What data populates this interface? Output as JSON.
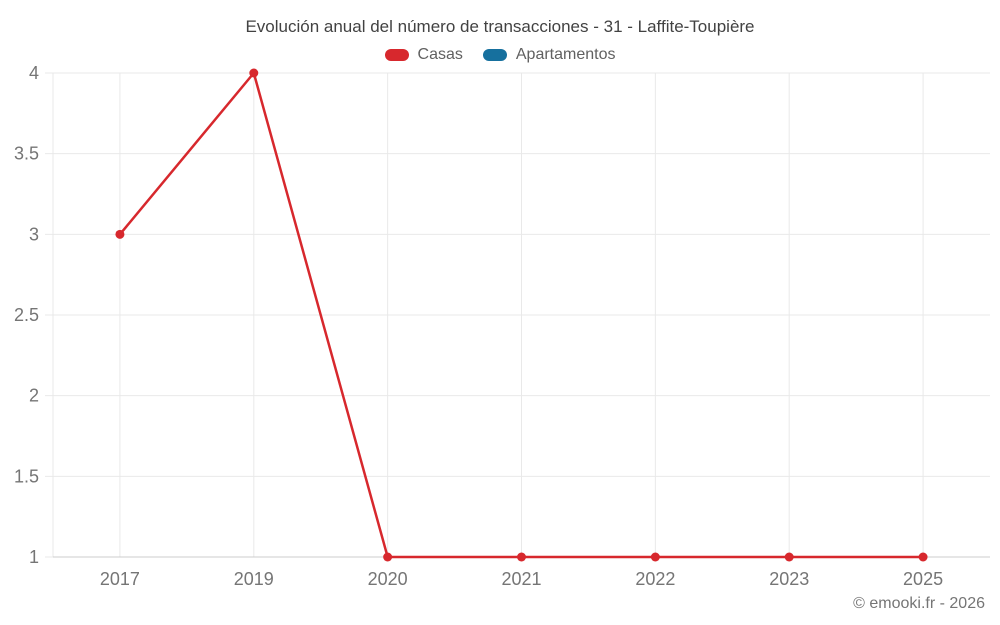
{
  "header": {
    "title": "Evolución anual del número de transacciones - 31 - Laffite-Toupière"
  },
  "legend": {
    "items": [
      {
        "label": "Casas",
        "color": "#d7282d"
      },
      {
        "label": "Apartamentos",
        "color": "#16709e"
      }
    ]
  },
  "footer": {
    "credit": "© emooki.fr - 2026"
  },
  "colors": {
    "background": "#ffffff",
    "grid": "#e9e9e9",
    "axis": "#cccccc",
    "tick_label": "#757575",
    "title": "#424242",
    "legend_label": "#616161"
  },
  "chart_data": {
    "type": "line",
    "title": "Evolución anual del número de transacciones - 31 - Laffite-Toupière",
    "categories": [
      "2017",
      "2019",
      "2020",
      "2021",
      "2022",
      "2023",
      "2025"
    ],
    "series": [
      {
        "name": "Casas",
        "color": "#d7282d",
        "values": [
          3,
          4,
          1,
          1,
          1,
          1,
          1
        ]
      },
      {
        "name": "Apartamentos",
        "color": "#16709e",
        "values": []
      }
    ],
    "xlabel": "",
    "ylabel": "",
    "ylim": [
      1,
      4
    ],
    "yticks": [
      1,
      1.5,
      2,
      2.5,
      3,
      3.5,
      4
    ],
    "grid": true,
    "legend_position": "top",
    "marker": "circle"
  }
}
